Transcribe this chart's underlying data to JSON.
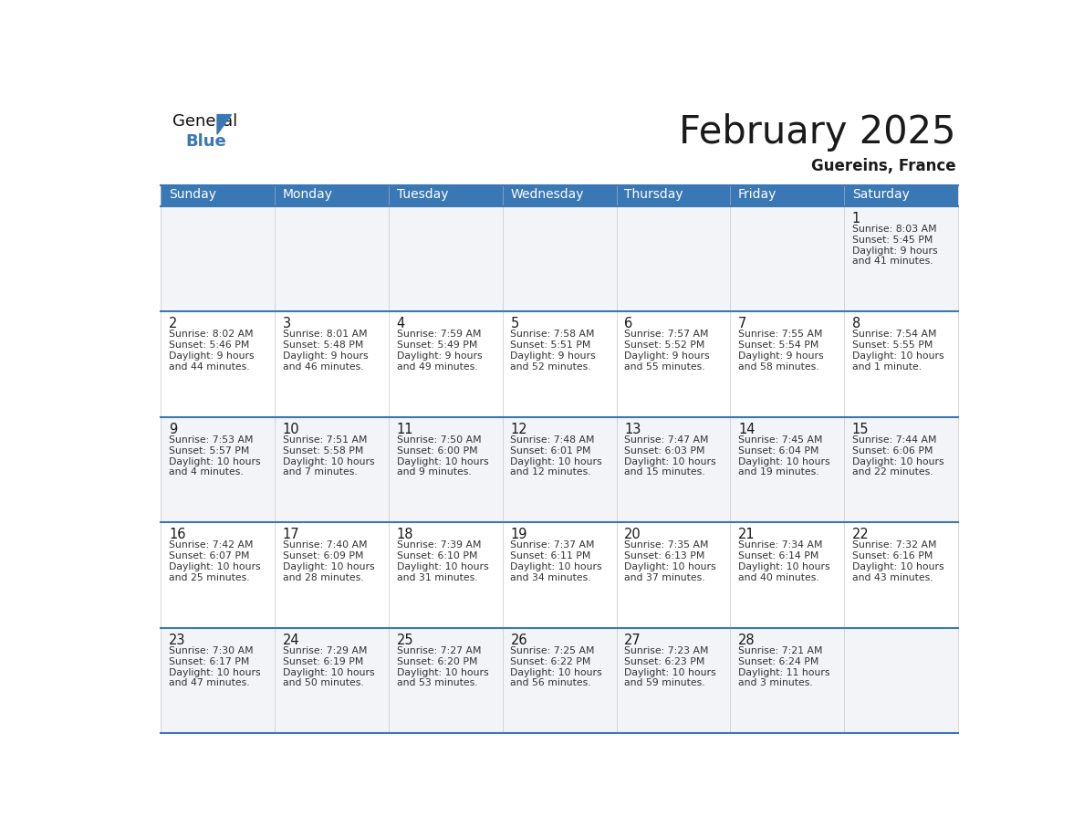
{
  "title": "February 2025",
  "subtitle": "Guereins, France",
  "header_bg": "#3a78b5",
  "header_text": "#ffffff",
  "cell_bg_odd": "#f2f4f7",
  "cell_bg_even": "#ffffff",
  "day_names": [
    "Sunday",
    "Monday",
    "Tuesday",
    "Wednesday",
    "Thursday",
    "Friday",
    "Saturday"
  ],
  "weeks": [
    [
      {
        "day": "",
        "sunrise": "",
        "sunset": "",
        "daylight": ""
      },
      {
        "day": "",
        "sunrise": "",
        "sunset": "",
        "daylight": ""
      },
      {
        "day": "",
        "sunrise": "",
        "sunset": "",
        "daylight": ""
      },
      {
        "day": "",
        "sunrise": "",
        "sunset": "",
        "daylight": ""
      },
      {
        "day": "",
        "sunrise": "",
        "sunset": "",
        "daylight": ""
      },
      {
        "day": "",
        "sunrise": "",
        "sunset": "",
        "daylight": ""
      },
      {
        "day": "1",
        "sunrise": "8:03 AM",
        "sunset": "5:45 PM",
        "daylight": "9 hours\nand 41 minutes."
      }
    ],
    [
      {
        "day": "2",
        "sunrise": "8:02 AM",
        "sunset": "5:46 PM",
        "daylight": "9 hours\nand 44 minutes."
      },
      {
        "day": "3",
        "sunrise": "8:01 AM",
        "sunset": "5:48 PM",
        "daylight": "9 hours\nand 46 minutes."
      },
      {
        "day": "4",
        "sunrise": "7:59 AM",
        "sunset": "5:49 PM",
        "daylight": "9 hours\nand 49 minutes."
      },
      {
        "day": "5",
        "sunrise": "7:58 AM",
        "sunset": "5:51 PM",
        "daylight": "9 hours\nand 52 minutes."
      },
      {
        "day": "6",
        "sunrise": "7:57 AM",
        "sunset": "5:52 PM",
        "daylight": "9 hours\nand 55 minutes."
      },
      {
        "day": "7",
        "sunrise": "7:55 AM",
        "sunset": "5:54 PM",
        "daylight": "9 hours\nand 58 minutes."
      },
      {
        "day": "8",
        "sunrise": "7:54 AM",
        "sunset": "5:55 PM",
        "daylight": "10 hours\nand 1 minute."
      }
    ],
    [
      {
        "day": "9",
        "sunrise": "7:53 AM",
        "sunset": "5:57 PM",
        "daylight": "10 hours\nand 4 minutes."
      },
      {
        "day": "10",
        "sunrise": "7:51 AM",
        "sunset": "5:58 PM",
        "daylight": "10 hours\nand 7 minutes."
      },
      {
        "day": "11",
        "sunrise": "7:50 AM",
        "sunset": "6:00 PM",
        "daylight": "10 hours\nand 9 minutes."
      },
      {
        "day": "12",
        "sunrise": "7:48 AM",
        "sunset": "6:01 PM",
        "daylight": "10 hours\nand 12 minutes."
      },
      {
        "day": "13",
        "sunrise": "7:47 AM",
        "sunset": "6:03 PM",
        "daylight": "10 hours\nand 15 minutes."
      },
      {
        "day": "14",
        "sunrise": "7:45 AM",
        "sunset": "6:04 PM",
        "daylight": "10 hours\nand 19 minutes."
      },
      {
        "day": "15",
        "sunrise": "7:44 AM",
        "sunset": "6:06 PM",
        "daylight": "10 hours\nand 22 minutes."
      }
    ],
    [
      {
        "day": "16",
        "sunrise": "7:42 AM",
        "sunset": "6:07 PM",
        "daylight": "10 hours\nand 25 minutes."
      },
      {
        "day": "17",
        "sunrise": "7:40 AM",
        "sunset": "6:09 PM",
        "daylight": "10 hours\nand 28 minutes."
      },
      {
        "day": "18",
        "sunrise": "7:39 AM",
        "sunset": "6:10 PM",
        "daylight": "10 hours\nand 31 minutes."
      },
      {
        "day": "19",
        "sunrise": "7:37 AM",
        "sunset": "6:11 PM",
        "daylight": "10 hours\nand 34 minutes."
      },
      {
        "day": "20",
        "sunrise": "7:35 AM",
        "sunset": "6:13 PM",
        "daylight": "10 hours\nand 37 minutes."
      },
      {
        "day": "21",
        "sunrise": "7:34 AM",
        "sunset": "6:14 PM",
        "daylight": "10 hours\nand 40 minutes."
      },
      {
        "day": "22",
        "sunrise": "7:32 AM",
        "sunset": "6:16 PM",
        "daylight": "10 hours\nand 43 minutes."
      }
    ],
    [
      {
        "day": "23",
        "sunrise": "7:30 AM",
        "sunset": "6:17 PM",
        "daylight": "10 hours\nand 47 minutes."
      },
      {
        "day": "24",
        "sunrise": "7:29 AM",
        "sunset": "6:19 PM",
        "daylight": "10 hours\nand 50 minutes."
      },
      {
        "day": "25",
        "sunrise": "7:27 AM",
        "sunset": "6:20 PM",
        "daylight": "10 hours\nand 53 minutes."
      },
      {
        "day": "26",
        "sunrise": "7:25 AM",
        "sunset": "6:22 PM",
        "daylight": "10 hours\nand 56 minutes."
      },
      {
        "day": "27",
        "sunrise": "7:23 AM",
        "sunset": "6:23 PM",
        "daylight": "10 hours\nand 59 minutes."
      },
      {
        "day": "28",
        "sunrise": "7:21 AM",
        "sunset": "6:24 PM",
        "daylight": "11 hours\nand 3 minutes."
      },
      {
        "day": "",
        "sunrise": "",
        "sunset": "",
        "daylight": ""
      }
    ]
  ],
  "logo_color": "#3a78b5",
  "text_color": "#1a1a1a",
  "line_color": "#3a78b5",
  "cell_text_color": "#333333",
  "day_num_color": "#1a1a1a",
  "fig_width": 11.88,
  "fig_height": 9.18,
  "dpi": 100
}
